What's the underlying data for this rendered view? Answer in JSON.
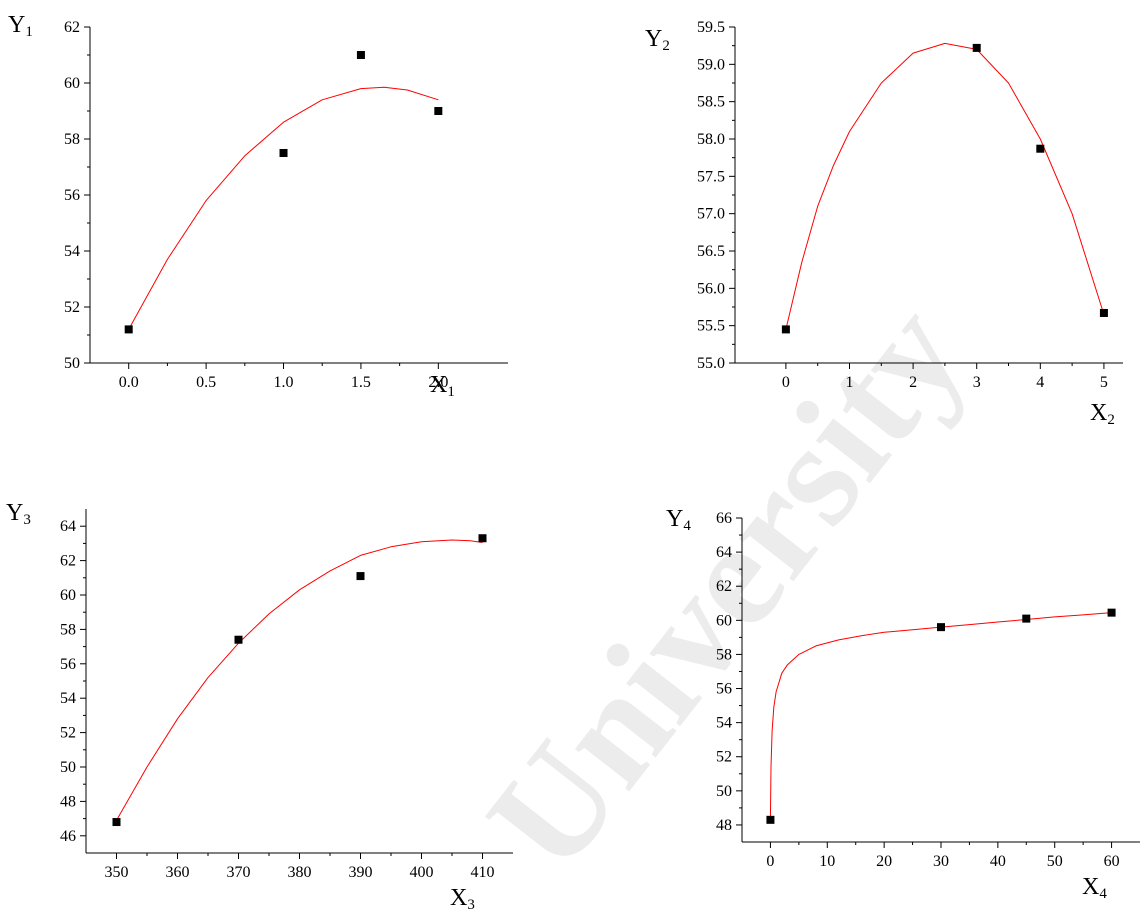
{
  "watermark": {
    "text": "University"
  },
  "chart_data": [
    {
      "type": "scatter",
      "title": "",
      "xlabel": {
        "main": "X",
        "sub": "1"
      },
      "ylabel": {
        "main": "Y",
        "sub": "1"
      },
      "xlim": [
        -0.25,
        2.45
      ],
      "ylim": [
        50,
        62
      ],
      "xticks": [
        0.0,
        0.5,
        1.0,
        1.5,
        2.0
      ],
      "xtick_labels": [
        "0.0",
        "0.5",
        "1.0",
        "1.5",
        "2.0"
      ],
      "yticks": [
        50,
        52,
        54,
        56,
        58,
        60,
        62
      ],
      "ytick_labels": [
        "50",
        "52",
        "54",
        "56",
        "58",
        "60",
        "62"
      ],
      "points": {
        "x": [
          0.0,
          1.0,
          1.5,
          2.0
        ],
        "y": [
          51.2,
          57.5,
          61.0,
          59.0
        ]
      },
      "fit": {
        "x": [
          0.0,
          0.25,
          0.5,
          0.75,
          1.0,
          1.25,
          1.5,
          1.65,
          1.8,
          2.0
        ],
        "y": [
          51.2,
          53.7,
          55.8,
          57.4,
          58.6,
          59.4,
          59.8,
          59.85,
          59.75,
          59.4
        ]
      },
      "point_color": "#000000",
      "line_color": "#ff0000",
      "grid": false,
      "legend": "none"
    },
    {
      "type": "scatter",
      "title": "",
      "xlabel": {
        "main": "X",
        "sub": "2"
      },
      "ylabel": {
        "main": "Y",
        "sub": "2"
      },
      "xlim": [
        -0.8,
        5.3
      ],
      "ylim": [
        55.0,
        59.5
      ],
      "xticks": [
        0,
        1,
        2,
        3,
        4,
        5
      ],
      "xtick_labels": [
        "0",
        "1",
        "2",
        "3",
        "4",
        "5"
      ],
      "yticks": [
        55.0,
        55.5,
        56.0,
        56.5,
        57.0,
        57.5,
        58.0,
        58.5,
        59.0,
        59.5
      ],
      "ytick_labels": [
        "55.0",
        "55.5",
        "56.0",
        "56.5",
        "57.0",
        "57.5",
        "58.0",
        "58.5",
        "59.0",
        "59.5"
      ],
      "points": {
        "x": [
          0,
          3,
          4,
          5
        ],
        "y": [
          55.45,
          59.22,
          57.87,
          55.67
        ]
      },
      "fit": {
        "x": [
          0,
          0.25,
          0.5,
          0.75,
          1.0,
          1.5,
          2.0,
          2.5,
          3.0,
          3.5,
          4.0,
          4.5,
          5.0
        ],
        "y": [
          55.45,
          56.35,
          57.1,
          57.65,
          58.1,
          58.75,
          59.15,
          59.28,
          59.2,
          58.75,
          58.0,
          57.0,
          55.65
        ]
      },
      "point_color": "#000000",
      "line_color": "#ff0000",
      "grid": false,
      "legend": "none"
    },
    {
      "type": "scatter",
      "title": "",
      "xlabel": {
        "main": "X",
        "sub": "3"
      },
      "ylabel": {
        "main": "Y",
        "sub": "3"
      },
      "xlim": [
        345,
        415
      ],
      "ylim": [
        45,
        65
      ],
      "xticks": [
        350,
        360,
        370,
        380,
        390,
        400,
        410
      ],
      "xtick_labels": [
        "350",
        "360",
        "370",
        "380",
        "390",
        "400",
        "410"
      ],
      "yticks": [
        46,
        48,
        50,
        52,
        54,
        56,
        58,
        60,
        62,
        64
      ],
      "ytick_labels": [
        "46",
        "48",
        "50",
        "52",
        "54",
        "56",
        "58",
        "60",
        "62",
        "64"
      ],
      "points": {
        "x": [
          350,
          370,
          390,
          410
        ],
        "y": [
          46.8,
          57.4,
          61.1,
          63.3
        ]
      },
      "fit": {
        "x": [
          350,
          355,
          360,
          365,
          370,
          375,
          380,
          385,
          390,
          395,
          400,
          405,
          408,
          410
        ],
        "y": [
          46.9,
          50.0,
          52.8,
          55.2,
          57.2,
          58.9,
          60.3,
          61.4,
          62.3,
          62.8,
          63.1,
          63.2,
          63.15,
          63.05
        ]
      },
      "point_color": "#000000",
      "line_color": "#ff0000",
      "grid": false,
      "legend": "none"
    },
    {
      "type": "scatter",
      "title": "",
      "xlabel": {
        "main": "X",
        "sub": "4"
      },
      "ylabel": {
        "main": "Y",
        "sub": "4"
      },
      "xlim": [
        -5,
        65
      ],
      "ylim": [
        47,
        66
      ],
      "xticks": [
        0,
        10,
        20,
        30,
        40,
        50,
        60
      ],
      "xtick_labels": [
        "0",
        "10",
        "20",
        "30",
        "40",
        "50",
        "60"
      ],
      "yticks": [
        48,
        50,
        52,
        54,
        56,
        58,
        60,
        62,
        64,
        66
      ],
      "ytick_labels": [
        "48",
        "50",
        "52",
        "54",
        "56",
        "58",
        "60",
        "62",
        "64",
        "66"
      ],
      "points": {
        "x": [
          0,
          30,
          45,
          60
        ],
        "y": [
          48.3,
          59.6,
          60.1,
          60.45
        ]
      },
      "fit": {
        "x": [
          0,
          0.1,
          0.3,
          0.6,
          1,
          2,
          3,
          5,
          8,
          12,
          16,
          20,
          25,
          30,
          35,
          40,
          45,
          50,
          55,
          60
        ],
        "y": [
          48.3,
          51.4,
          53.5,
          54.9,
          55.8,
          56.9,
          57.4,
          58.0,
          58.5,
          58.85,
          59.1,
          59.3,
          59.45,
          59.6,
          59.75,
          59.9,
          60.05,
          60.2,
          60.32,
          60.45
        ]
      },
      "point_color": "#000000",
      "line_color": "#ff0000",
      "grid": false,
      "legend": "none"
    }
  ]
}
